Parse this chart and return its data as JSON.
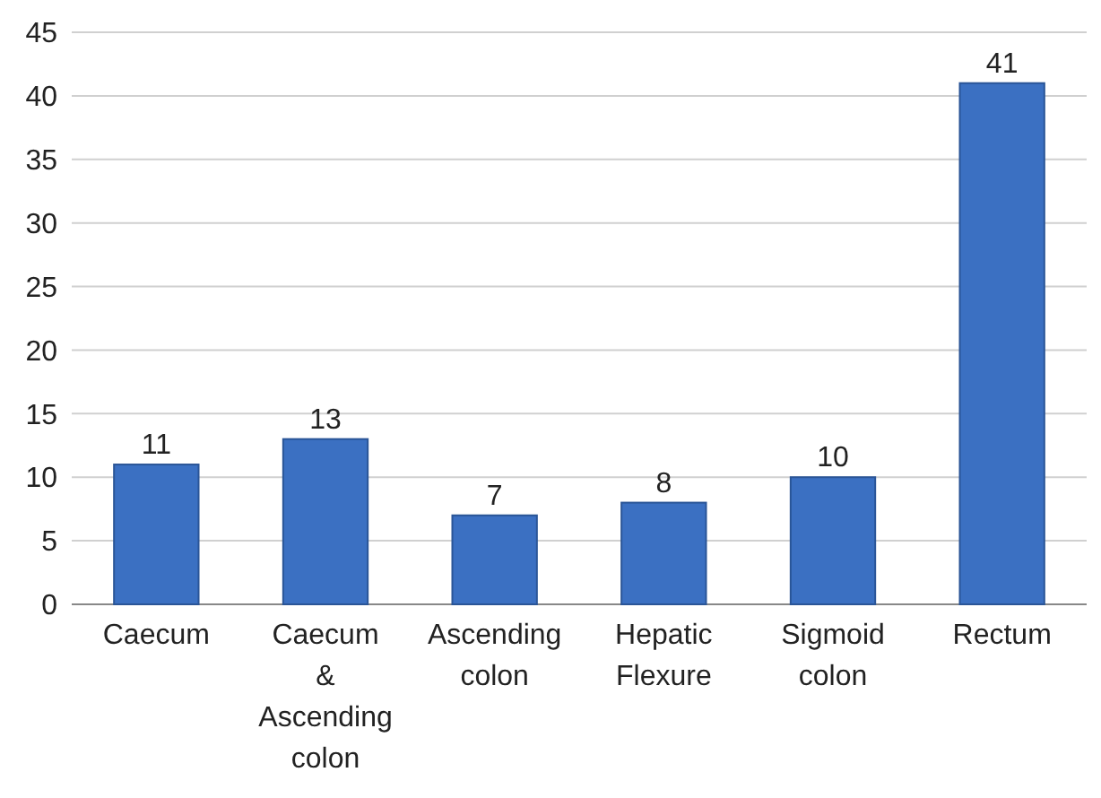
{
  "chart_data": {
    "type": "bar",
    "categories": [
      "Caecum",
      "Caecum & Ascending colon",
      "Ascending colon",
      "Hepatic Flexure",
      "Sigmoid colon",
      "Rectum"
    ],
    "values": [
      11,
      13,
      7,
      8,
      10,
      41
    ],
    "color": "#3b70c2",
    "ylim": [
      0,
      45
    ],
    "yticks": [
      0,
      5,
      10,
      15,
      20,
      25,
      30,
      35,
      40,
      45
    ],
    "grid": "y",
    "data_labels": true
  }
}
